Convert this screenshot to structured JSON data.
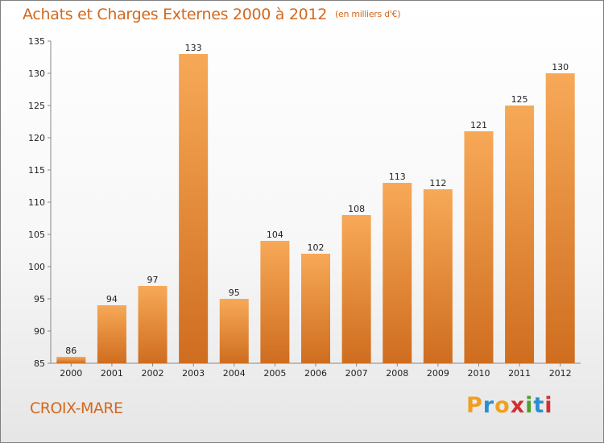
{
  "header": {
    "title": "Achats et Charges Externes 2000 à 2012",
    "subtitle": "(en milliers d'€)"
  },
  "footer": {
    "commune": "CROIX-MARE",
    "brand": "Proxiti"
  },
  "colors": {
    "bar_light": "#f5a453",
    "bar_dark": "#c8661c",
    "title": "#d2691e"
  },
  "chart_data": {
    "type": "bar",
    "title": "Achats et Charges Externes 2000 à 2012",
    "subtitle": "(en milliers d'€)",
    "categories": [
      "2000",
      "2001",
      "2002",
      "2003",
      "2004",
      "2005",
      "2006",
      "2007",
      "2008",
      "2009",
      "2010",
      "2011",
      "2012"
    ],
    "values": [
      86,
      94,
      97,
      133,
      95,
      104,
      102,
      108,
      113,
      112,
      121,
      125,
      130
    ],
    "ylim": [
      85,
      135
    ],
    "yticks": [
      85,
      90,
      95,
      100,
      105,
      110,
      115,
      120,
      125,
      130,
      135
    ],
    "xlabel": "",
    "ylabel": "",
    "grid": false,
    "legend": "none"
  }
}
